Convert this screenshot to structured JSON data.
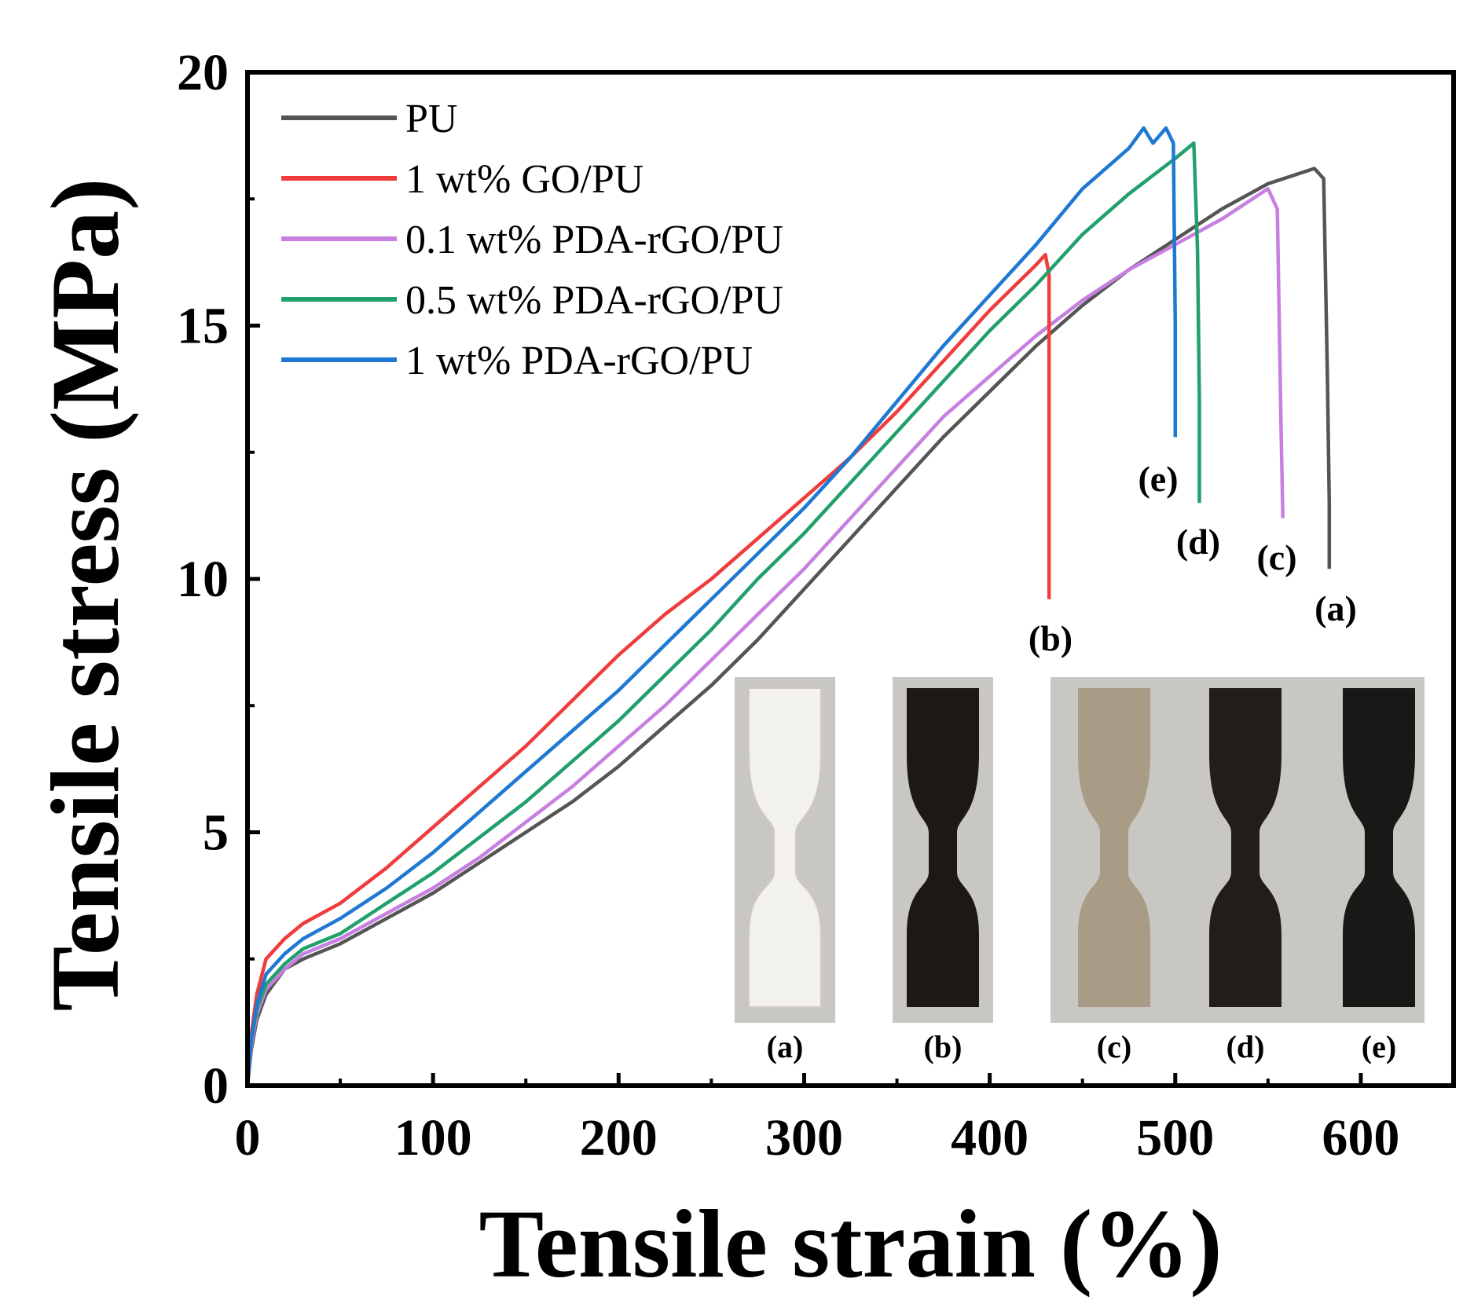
{
  "chart_data": {
    "type": "line",
    "title": "",
    "xlabel": "Tensile strain (%)",
    "ylabel": "Tensile stress (MPa)",
    "xlim": [
      0,
      650
    ],
    "ylim": [
      0,
      20
    ],
    "x_ticks": [
      0,
      100,
      200,
      300,
      400,
      500,
      600
    ],
    "y_ticks": [
      0,
      5,
      10,
      15,
      20
    ],
    "grid": false,
    "legend_position": "top-left",
    "series": [
      {
        "name": "PU",
        "color": "#555555",
        "label": "(a)",
        "x": [
          0,
          2,
          5,
          10,
          20,
          30,
          50,
          75,
          100,
          125,
          150,
          175,
          200,
          225,
          250,
          275,
          300,
          325,
          350,
          375,
          400,
          425,
          450,
          475,
          500,
          525,
          550,
          575,
          580,
          582,
          583,
          583
        ],
        "y": [
          0,
          0.7,
          1.3,
          1.8,
          2.3,
          2.5,
          2.8,
          3.3,
          3.8,
          4.4,
          5.0,
          5.6,
          6.3,
          7.1,
          7.9,
          8.8,
          9.8,
          10.8,
          11.8,
          12.8,
          13.7,
          14.6,
          15.4,
          16.1,
          16.7,
          17.3,
          17.8,
          18.1,
          17.9,
          14.0,
          11.5,
          10.2
        ]
      },
      {
        "name": "1 wt% GO/PU",
        "color": "#f03c3c",
        "label": "(b)",
        "x": [
          0,
          2,
          5,
          10,
          20,
          30,
          50,
          75,
          100,
          125,
          150,
          175,
          200,
          225,
          250,
          275,
          300,
          325,
          350,
          375,
          400,
          425,
          430,
          432,
          432,
          432
        ],
        "y": [
          0,
          1.0,
          1.8,
          2.5,
          2.9,
          3.2,
          3.6,
          4.3,
          5.1,
          5.9,
          6.7,
          7.6,
          8.5,
          9.3,
          10.0,
          10.8,
          11.6,
          12.4,
          13.3,
          14.3,
          15.3,
          16.2,
          16.4,
          16.0,
          12.0,
          9.6
        ]
      },
      {
        "name": "0.1 wt% PDA-rGO/PU",
        "color": "#c77fe0",
        "label": "(c)",
        "x": [
          0,
          2,
          5,
          10,
          20,
          30,
          50,
          75,
          100,
          125,
          150,
          175,
          200,
          225,
          250,
          275,
          300,
          325,
          350,
          375,
          400,
          425,
          450,
          475,
          500,
          525,
          550,
          555,
          557,
          558
        ],
        "y": [
          0,
          0.8,
          1.4,
          1.9,
          2.3,
          2.6,
          2.9,
          3.4,
          3.9,
          4.5,
          5.2,
          5.9,
          6.7,
          7.5,
          8.4,
          9.3,
          10.2,
          11.2,
          12.2,
          13.2,
          14.0,
          14.8,
          15.5,
          16.1,
          16.6,
          17.1,
          17.7,
          17.3,
          13.0,
          11.2
        ]
      },
      {
        "name": "0.5 wt% PDA-rGO/PU",
        "color": "#22a06b",
        "label": "(d)",
        "x": [
          0,
          2,
          5,
          10,
          20,
          30,
          50,
          75,
          100,
          125,
          150,
          175,
          200,
          225,
          250,
          275,
          300,
          325,
          350,
          375,
          400,
          425,
          450,
          475,
          500,
          510,
          512,
          513,
          513
        ],
        "y": [
          0,
          0.9,
          1.5,
          2.0,
          2.4,
          2.7,
          3.0,
          3.6,
          4.2,
          4.9,
          5.6,
          6.4,
          7.2,
          8.1,
          9.0,
          10.0,
          10.9,
          11.9,
          12.9,
          13.9,
          14.9,
          15.8,
          16.8,
          17.6,
          18.3,
          18.6,
          16.5,
          13.5,
          11.5
        ]
      },
      {
        "name": "1 wt% PDA-rGO/PU",
        "color": "#1f78d1",
        "label": "(e)",
        "x": [
          0,
          2,
          5,
          10,
          20,
          30,
          50,
          75,
          100,
          125,
          150,
          175,
          200,
          225,
          250,
          275,
          300,
          325,
          350,
          375,
          400,
          425,
          450,
          475,
          483,
          488,
          495,
          499,
          500,
          500
        ],
        "y": [
          0,
          0.9,
          1.6,
          2.2,
          2.6,
          2.9,
          3.3,
          3.9,
          4.6,
          5.4,
          6.2,
          7.0,
          7.8,
          8.7,
          9.6,
          10.5,
          11.4,
          12.4,
          13.5,
          14.6,
          15.6,
          16.6,
          17.7,
          18.5,
          18.9,
          18.6,
          18.9,
          18.6,
          15.0,
          12.8
        ]
      }
    ],
    "inset": {
      "description_labels": [
        "(a)",
        "(b)",
        "(c)",
        "(d)",
        "(e)"
      ],
      "specimen_colors": [
        "#f3f1ec",
        "#1c1816",
        "#a99c86",
        "#231d1a",
        "#1a1816"
      ],
      "panel_background": "#c9c7c2"
    }
  }
}
